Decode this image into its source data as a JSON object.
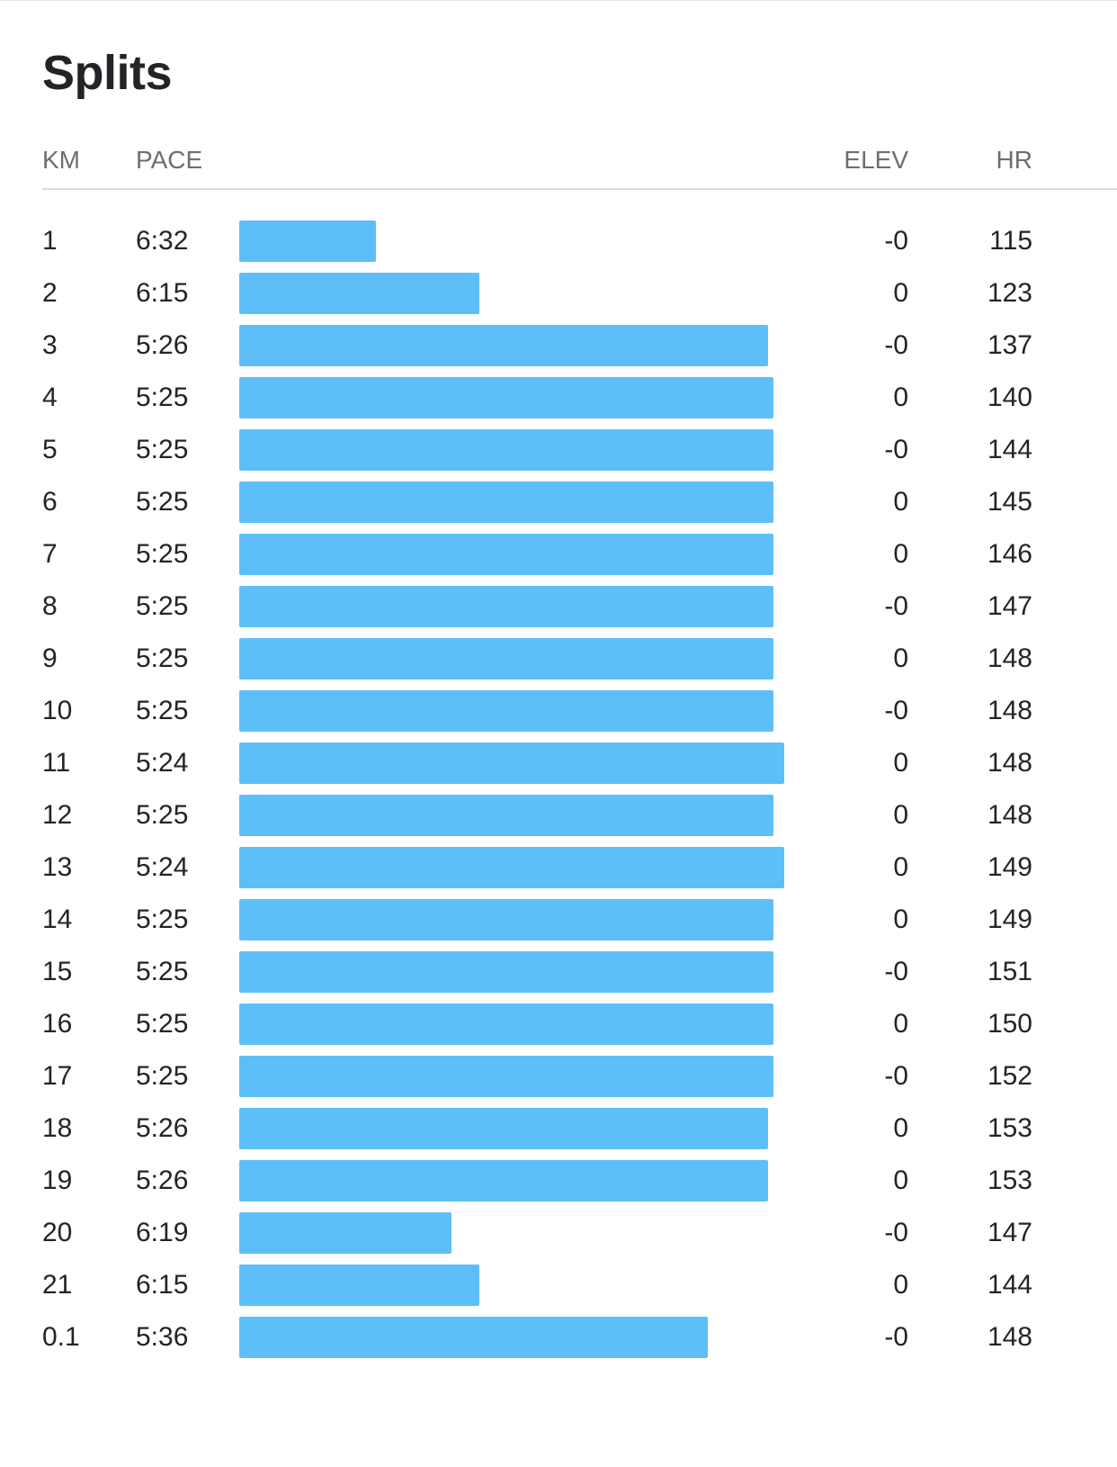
{
  "title": "Splits",
  "columns": {
    "km": "KM",
    "pace": "PACE",
    "elev": "ELEV",
    "hr": "HR"
  },
  "colors": {
    "bar": "#5ebff8",
    "text": "#242428",
    "header": "#6d6d78"
  },
  "pace_bar_fraction_note_excluded": false,
  "splits": [
    {
      "km": "1",
      "pace": "6:32",
      "pace_fraction": 0.25,
      "elev": "-0",
      "hr": "115"
    },
    {
      "km": "2",
      "pace": "6:15",
      "pace_fraction": 0.44,
      "elev": "0",
      "hr": "123"
    },
    {
      "km": "3",
      "pace": "5:26",
      "pace_fraction": 0.97,
      "elev": "-0",
      "hr": "137"
    },
    {
      "km": "4",
      "pace": "5:25",
      "pace_fraction": 0.98,
      "elev": "0",
      "hr": "140"
    },
    {
      "km": "5",
      "pace": "5:25",
      "pace_fraction": 0.98,
      "elev": "-0",
      "hr": "144"
    },
    {
      "km": "6",
      "pace": "5:25",
      "pace_fraction": 0.98,
      "elev": "0",
      "hr": "145"
    },
    {
      "km": "7",
      "pace": "5:25",
      "pace_fraction": 0.98,
      "elev": "0",
      "hr": "146"
    },
    {
      "km": "8",
      "pace": "5:25",
      "pace_fraction": 0.98,
      "elev": "-0",
      "hr": "147"
    },
    {
      "km": "9",
      "pace": "5:25",
      "pace_fraction": 0.98,
      "elev": "0",
      "hr": "148"
    },
    {
      "km": "10",
      "pace": "5:25",
      "pace_fraction": 0.98,
      "elev": "-0",
      "hr": "148"
    },
    {
      "km": "11",
      "pace": "5:24",
      "pace_fraction": 1.0,
      "elev": "0",
      "hr": "148"
    },
    {
      "km": "12",
      "pace": "5:25",
      "pace_fraction": 0.98,
      "elev": "0",
      "hr": "148"
    },
    {
      "km": "13",
      "pace": "5:24",
      "pace_fraction": 1.0,
      "elev": "0",
      "hr": "149"
    },
    {
      "km": "14",
      "pace": "5:25",
      "pace_fraction": 0.98,
      "elev": "0",
      "hr": "149"
    },
    {
      "km": "15",
      "pace": "5:25",
      "pace_fraction": 0.98,
      "elev": "-0",
      "hr": "151"
    },
    {
      "km": "16",
      "pace": "5:25",
      "pace_fraction": 0.98,
      "elev": "0",
      "hr": "150"
    },
    {
      "km": "17",
      "pace": "5:25",
      "pace_fraction": 0.98,
      "elev": "-0",
      "hr": "152"
    },
    {
      "km": "18",
      "pace": "5:26",
      "pace_fraction": 0.97,
      "elev": "0",
      "hr": "153"
    },
    {
      "km": "19",
      "pace": "5:26",
      "pace_fraction": 0.97,
      "elev": "0",
      "hr": "153"
    },
    {
      "km": "20",
      "pace": "6:19",
      "pace_fraction": 0.39,
      "elev": "-0",
      "hr": "147"
    },
    {
      "km": "21",
      "pace": "6:15",
      "pace_fraction": 0.44,
      "elev": "0",
      "hr": "144"
    },
    {
      "km": "0.1",
      "pace": "5:36",
      "pace_fraction": 0.86,
      "elev": "-0",
      "hr": "148"
    }
  ]
}
